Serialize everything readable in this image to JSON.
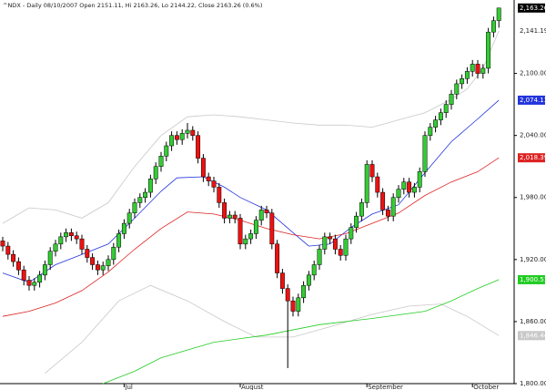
{
  "chart_data": {
    "type": "candlestick",
    "title": "^NDX - Daily 08/10/2007 Open 2151.11, Hi 2163.26, Lo 2144.22, Close 2163.26 (0.6%)",
    "categories": [
      null,
      null,
      null,
      null,
      null,
      null,
      null,
      null,
      null,
      null,
      null,
      null,
      null,
      null,
      null,
      null,
      null,
      null,
      null,
      null,
      null,
      null,
      null,
      "Jul",
      null,
      null,
      null,
      null,
      null,
      null,
      null,
      null,
      null,
      null,
      null,
      null,
      null,
      null,
      null,
      null,
      null,
      null,
      null,
      null,
      null,
      "August",
      null,
      null,
      null,
      null,
      null,
      null,
      null,
      null,
      null,
      null,
      null,
      null,
      null,
      null,
      null,
      null,
      null,
      null,
      null,
      null,
      null,
      null,
      null,
      "September",
      null,
      null,
      null,
      null,
      null,
      null,
      null,
      null,
      null,
      null,
      null,
      null,
      null,
      null,
      null,
      null,
      null,
      null,
      null,
      "October",
      null,
      null,
      null,
      null,
      null
    ],
    "open": [
      1938,
      1933,
      1925,
      1918,
      1910,
      1900,
      1895,
      1898,
      1905,
      1915,
      1928,
      1935,
      1942,
      1946,
      1943,
      1940,
      1930,
      1922,
      1915,
      1910,
      1914,
      1920,
      1932,
      1945,
      1955,
      1965,
      1975,
      1980,
      1985,
      1998,
      2010,
      2020,
      2030,
      2040,
      2036,
      2042,
      2045,
      2040,
      2018,
      2000,
      1996,
      1990,
      1975,
      1960,
      1963,
      1960,
      1935,
      1940,
      1945,
      1958,
      1968,
      1965,
      1935,
      1907,
      1892,
      1880,
      1870,
      1883,
      1895,
      1905,
      1915,
      1930,
      1942,
      1940,
      1930,
      1924,
      1940,
      1951,
      1962,
      1975,
      2012,
      2000,
      1985,
      1968,
      1962,
      1980,
      1988,
      1995,
      1985,
      1990,
      2005,
      2040,
      2048,
      2055,
      2062,
      2070,
      2080,
      2090,
      2095,
      2102,
      2109,
      2100,
      2105,
      2140,
      2151.11
    ],
    "high": [
      1942,
      1937,
      1929,
      1922,
      1914,
      1904,
      1902,
      1909,
      1919,
      1932,
      1939,
      1946,
      1950,
      1950,
      1947,
      1944,
      1934,
      1926,
      1919,
      1918,
      1924,
      1936,
      1949,
      1959,
      1969,
      1979,
      1984,
      1989,
      2002,
      2014,
      2024,
      2034,
      2044,
      2044,
      2046,
      2052,
      2049,
      2044,
      2022,
      2004,
      2000,
      1994,
      1979,
      1967,
      1967,
      1964,
      1944,
      1949,
      1962,
      1972,
      1972,
      1969,
      1939,
      1911,
      1896,
      1884,
      1887,
      1899,
      1909,
      1919,
      1934,
      1946,
      1946,
      1944,
      1934,
      1944,
      1955,
      1966,
      1979,
      2016,
      2016,
      2004,
      1989,
      1972,
      1984,
      1992,
      1999,
      1999,
      1994,
      2009,
      2044,
      2052,
      2059,
      2066,
      2074,
      2084,
      2094,
      2099,
      2106,
      2113,
      2113,
      2109,
      2144,
      2155,
      2163.26
    ],
    "low": [
      1928,
      1920,
      1913,
      1905,
      1895,
      1890,
      1890,
      1893,
      1900,
      1910,
      1923,
      1930,
      1937,
      1938,
      1935,
      1925,
      1917,
      1910,
      1905,
      1905,
      1909,
      1915,
      1927,
      1940,
      1950,
      1960,
      1970,
      1975,
      1980,
      1993,
      2005,
      2015,
      2025,
      2031,
      2031,
      2037,
      2035,
      2013,
      1995,
      1991,
      1985,
      1970,
      1955,
      1955,
      1955,
      1930,
      1930,
      1935,
      1940,
      1953,
      1960,
      1930,
      1902,
      1887,
      1815,
      1865,
      1865,
      1878,
      1890,
      1900,
      1910,
      1925,
      1935,
      1925,
      1919,
      1919,
      1935,
      1946,
      1957,
      1970,
      1995,
      1980,
      1963,
      1957,
      1957,
      1975,
      1983,
      1980,
      1980,
      1985,
      2000,
      2035,
      2043,
      2050,
      2057,
      2065,
      2075,
      2085,
      2090,
      2097,
      2095,
      2095,
      2100,
      2135,
      2144.22
    ],
    "close": [
      1933,
      1925,
      1918,
      1910,
      1900,
      1895,
      1898,
      1905,
      1915,
      1928,
      1935,
      1942,
      1946,
      1943,
      1940,
      1930,
      1922,
      1915,
      1910,
      1914,
      1920,
      1932,
      1945,
      1955,
      1965,
      1975,
      1980,
      1985,
      1998,
      2010,
      2020,
      2030,
      2040,
      2036,
      2042,
      2045,
      2040,
      2018,
      2000,
      1996,
      1990,
      1975,
      1960,
      1963,
      1960,
      1935,
      1940,
      1945,
      1958,
      1968,
      1965,
      1935,
      1907,
      1892,
      1880,
      1870,
      1883,
      1895,
      1905,
      1915,
      1930,
      1942,
      1940,
      1930,
      1924,
      1940,
      1951,
      1962,
      1975,
      2012,
      2000,
      1985,
      1968,
      1962,
      1980,
      1988,
      1995,
      1985,
      1990,
      2005,
      2040,
      2048,
      2055,
      2062,
      2070,
      2080,
      2090,
      2095,
      2102,
      2109,
      2100,
      2105,
      2140,
      2151,
      2163.26
    ],
    "up_color": "#33cc33",
    "down_color": "#ee1111",
    "close_label": "2,163.26",
    "close_label_color": "#000000",
    "lines": [
      {
        "color": "#c8c8c8",
        "label": "2,141.19",
        "label_boxed": false,
        "x": [
          0,
          5,
          10,
          15,
          20,
          25,
          30,
          35,
          40,
          45,
          50,
          55,
          60,
          65,
          70,
          75,
          80,
          85,
          88,
          91,
          94
        ],
        "values": [
          1955,
          1970,
          1968,
          1960,
          1975,
          2010,
          2040,
          2058,
          2060,
          2058,
          2055,
          2052,
          2050,
          2050,
          2048,
          2055,
          2062,
          2075,
          2085,
          2105,
          2141.19
        ]
      },
      {
        "color": "#c8c8c8",
        "label": "1,846.44",
        "label_boxed": true,
        "x": [
          8,
          15,
          22,
          28,
          35,
          42,
          48,
          55,
          62,
          70,
          77,
          83,
          88,
          94
        ],
        "values": [
          1810,
          1840,
          1880,
          1895,
          1880,
          1860,
          1845,
          1845,
          1855,
          1867,
          1875,
          1877,
          1865,
          1846.44
        ]
      },
      {
        "color": "#2233dd",
        "label": "2,074.13",
        "label_boxed": true,
        "x": [
          0,
          5,
          10,
          15,
          20,
          25,
          30,
          33,
          38,
          42,
          45,
          50,
          55,
          58,
          62,
          66,
          70,
          75,
          80,
          85,
          90,
          94
        ],
        "values": [
          1907,
          1898,
          1915,
          1925,
          1935,
          1960,
          1986,
          1999,
          2000,
          1990,
          1980,
          1968,
          1946,
          1933,
          1935,
          1951,
          1964,
          1973,
          2004,
          2034,
          2056,
          2074.13
        ]
      },
      {
        "color": "#dd2222",
        "label": "2,018.39",
        "label_boxed": true,
        "x": [
          0,
          5,
          10,
          15,
          20,
          25,
          30,
          35,
          40,
          45,
          50,
          55,
          60,
          65,
          70,
          75,
          80,
          85,
          90,
          94
        ],
        "values": [
          1865,
          1870,
          1878,
          1890,
          1908,
          1930,
          1950,
          1966,
          1964,
          1958,
          1950,
          1944,
          1940,
          1945,
          1955,
          1965,
          1982,
          1995,
          2005,
          2018.39
        ]
      },
      {
        "color": "#22cc22",
        "label": "1,900.51",
        "label_boxed": true,
        "x": [
          19,
          25,
          30,
          40,
          50,
          60,
          70,
          80,
          85,
          90,
          94
        ],
        "values": [
          1800,
          1812,
          1825,
          1840,
          1847,
          1857,
          1863,
          1870,
          1880,
          1892,
          1900.51
        ]
      }
    ],
    "ylim": [
      1800,
      2171
    ],
    "yticks": [
      {
        "value": 1800,
        "label": "1,800.00"
      },
      {
        "value": 1860,
        "label": "1,860.00"
      },
      {
        "value": 1920,
        "label": "1,920.00"
      },
      {
        "value": 1980,
        "label": "1,980.00"
      },
      {
        "value": 2040,
        "label": "2,040.00"
      },
      {
        "value": 2100,
        "label": "2,100.00"
      }
    ]
  }
}
